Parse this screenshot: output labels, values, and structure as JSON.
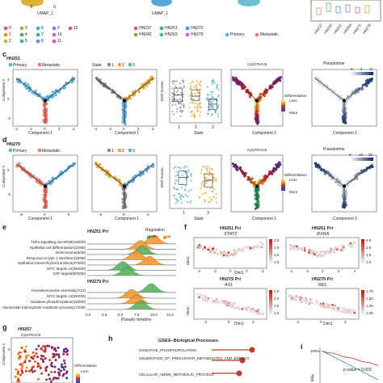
{
  "panels": [
    "c",
    "d",
    "e",
    "f",
    "g",
    "h",
    "i"
  ],
  "top_row": {
    "x_axis": "UMAP_1",
    "tick_a": "-5",
    "tick_b": "0",
    "clusters": [
      "0",
      "1",
      "2",
      "3",
      "4",
      "5",
      "6",
      "7",
      "8",
      "9",
      "10",
      "11",
      "12"
    ],
    "samples": [
      "HN237",
      "HN242",
      "HN251",
      "HN263",
      "HN272",
      "HN279"
    ],
    "origin": [
      "Primary",
      "Metastatic"
    ],
    "box_labels": [
      "HN237",
      "HN242",
      "HN251",
      "HN263",
      "HN272",
      "HN279"
    ]
  },
  "row_c": {
    "sample": "HN251",
    "legend_primary": "Primary",
    "legend_metastatic": "Metastatic",
    "state_title": "State",
    "states": [
      "1",
      "2",
      "3"
    ],
    "y_axis": "Component 2",
    "x_axis": "Component 1",
    "emt_y": "EMT Scores",
    "emt_x": "State",
    "cytotrace": "CytoTRACE",
    "differentiation": "Differentiation",
    "less": "Less",
    "more": "More",
    "pseudotime": "Pseudotime",
    "pt_ticks": [
      "0",
      "4",
      "8"
    ],
    "xticks": [
      "-4",
      "-2",
      "0",
      "2",
      "4"
    ],
    "yticks": [
      "2",
      "0",
      "-2"
    ]
  },
  "row_d": {
    "sample": "HN279",
    "legend_primary": "Primary",
    "legend_metastatic": "Metastatic",
    "states": [
      "1",
      "2",
      "3"
    ],
    "y_axis": "Component 2",
    "x_axis": "Component 1",
    "emt_y": "EMT Scores",
    "emt_x": "State",
    "cytotrace": "CytoTRACE",
    "differentiation": "Differentiation",
    "less": "Less",
    "more": "More",
    "pseudotime": "Pseudotime",
    "pt_ticks": [
      "0",
      "10",
      "20"
    ],
    "xticks": [
      "-5",
      "0",
      "5"
    ],
    "yticks": [
      "0",
      "-5"
    ]
  },
  "panel_e": {
    "group1": "HN251 Pri",
    "group2": "HN279 Pri",
    "legend_title": "Regulation",
    "legend_items": [
      "down",
      "up"
    ],
    "x_axis": "Pseudo~timeline",
    "xticks": [
      "0.0",
      "2.5",
      "5.0",
      "7.5",
      "10.0",
      "12.5"
    ],
    "terms1": [
      "TNFa signalling via NFKB(19/200)",
      "Epithelial cell differentiation(3/250)",
      "Desmosome(8/29)",
      "Response to type 1 interferon(20/68)",
      "Epithelial mesenchymal transition(47/200)",
      "MYC targets v1(39/200)",
      "E2F targets(50/200)"
    ],
    "terms2": [
      "Hemidesmosome assembly(7/12)",
      "MYC targets v1(29/200)",
      "Oxidative phosphorylation(19/200)",
      "Nucleoside triphosphate metabolic process(17/228)"
    ]
  },
  "panel_f": {
    "plots": [
      {
        "sample": "HN251 Pri",
        "gene": "STAT2",
        "scale": [
          "1.0",
          "1.5",
          "2.0",
          "2.5"
        ]
      },
      {
        "sample": "HN251 Pri",
        "gene": "RXRA",
        "scale": [
          "1.0",
          "1.5",
          "2.0",
          "2.5"
        ]
      },
      {
        "sample": "HN279 Pri",
        "gene": "AXL",
        "scale": [
          "1.0",
          "1.5",
          "2.0",
          "2.5"
        ]
      },
      {
        "sample": "HN279 Pri",
        "gene": "REL",
        "scale": [
          "1.00",
          "1.25",
          "1.50",
          "1.75"
        ]
      }
    ],
    "x_axis": "Dim1",
    "y_axis": "Dim2",
    "xticks": [
      "-4",
      "-2",
      "0",
      "2",
      "4"
    ],
    "xticks2": [
      "-3",
      "0",
      "3"
    ]
  },
  "panel_g": {
    "sample": "HN257",
    "cytotrace": "CytoTRACE",
    "y_axis": "Component 2",
    "differentiation": "Differentiation",
    "less": "Less",
    "ytick": "0"
  },
  "panel_h": {
    "title": "GSEA−Biological Processes",
    "terms": [
      "OXIDATIVE_PHOSPHORYLATION",
      "GENERATION_OF_PRECURSOR_METABOLITES_AND_ENERGY",
      "CELLULAR_AMIDE_METABOLIC_PROCESS"
    ]
  },
  "panel_i": {
    "pct": "100%",
    "pvalue": "p-value = 0.003",
    "y_axis": "bility"
  },
  "colors": {
    "primary": "#5fb3d9",
    "metastatic": "#ef7b6a",
    "state1": "#8a8a8a",
    "state2": "#e8a637",
    "state3": "#62a9d5",
    "trajectory": "#222222",
    "down": "#5bb25e",
    "up": "#f29a2e"
  }
}
